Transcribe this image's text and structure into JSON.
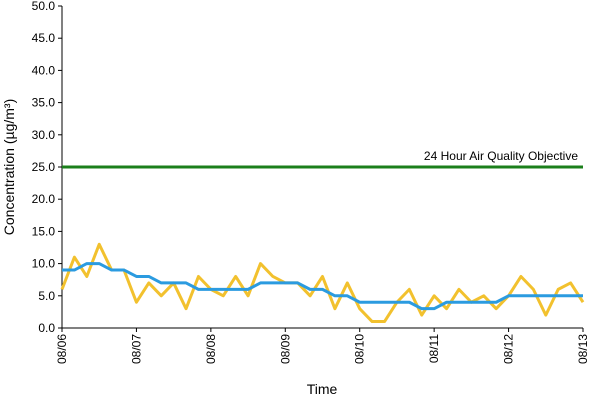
{
  "chart_data": {
    "type": "line",
    "xlabel": "Time",
    "ylabel": "Concentration (µg/m³)",
    "annotation": "24 Hour Air Quality Objective",
    "categories": [
      "08/06",
      null,
      null,
      null,
      null,
      null,
      "08/07",
      null,
      null,
      null,
      null,
      null,
      "08/08",
      null,
      null,
      null,
      null,
      null,
      "08/09",
      null,
      null,
      null,
      null,
      null,
      "08/10",
      null,
      null,
      null,
      null,
      null,
      "08/11",
      null,
      null,
      null,
      null,
      null,
      "08/12",
      null,
      null,
      null,
      null,
      null,
      "08/13"
    ],
    "series": [
      {
        "color": "#f2c12e",
        "values": [
          6,
          11,
          8,
          13,
          9,
          9,
          4,
          7,
          5,
          7,
          3,
          8,
          6,
          5,
          8,
          5,
          10,
          8,
          7,
          7,
          5,
          8,
          3,
          7,
          3,
          1,
          1,
          4,
          6,
          2,
          5,
          3,
          6,
          4,
          5,
          3,
          5,
          8,
          6,
          2,
          6,
          7,
          4
        ]
      },
      {
        "color": "#2b9be0",
        "values": [
          9,
          9,
          10,
          10,
          9,
          9,
          8,
          8,
          7,
          7,
          7,
          6,
          6,
          6,
          6,
          6,
          7,
          7,
          7,
          7,
          6,
          6,
          5,
          5,
          4,
          4,
          4,
          4,
          4,
          3,
          3,
          4,
          4,
          4,
          4,
          4,
          5,
          5,
          5,
          5,
          5,
          5,
          5
        ]
      },
      {
        "color": "#1b7f1b",
        "values": [
          25,
          25,
          25,
          25,
          25,
          25,
          25,
          25,
          25,
          25,
          25,
          25,
          25,
          25,
          25,
          25,
          25,
          25,
          25,
          25,
          25,
          25,
          25,
          25,
          25,
          25,
          25,
          25,
          25,
          25,
          25,
          25,
          25,
          25,
          25,
          25,
          25,
          25,
          25,
          25,
          25,
          25,
          25
        ]
      }
    ],
    "ylim": [
      0,
      50
    ],
    "yticks": [
      {
        "value": 0,
        "label": "0.0"
      },
      {
        "value": 5,
        "label": "5.0"
      },
      {
        "value": 10,
        "label": "10.0"
      },
      {
        "value": 15,
        "label": "15.0"
      },
      {
        "value": 20,
        "label": "20.0"
      },
      {
        "value": 25,
        "label": "25.0"
      },
      {
        "value": 30,
        "label": "30.0"
      },
      {
        "value": 35,
        "label": "35.0"
      },
      {
        "value": 40,
        "label": "40.0"
      },
      {
        "value": 45,
        "label": "45.0"
      },
      {
        "value": 50,
        "label": "50.0"
      }
    ],
    "grid": false
  }
}
